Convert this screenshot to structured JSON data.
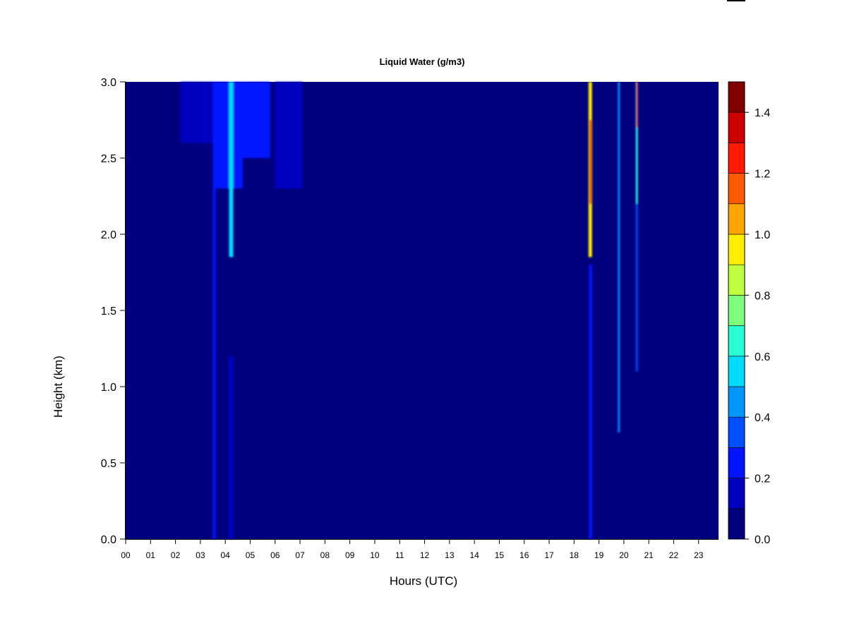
{
  "chart_data": {
    "type": "heatmap",
    "title": "Liquid Water (g/m3)",
    "xlabel": "Hours (UTC)",
    "ylabel": "Height (km)",
    "x_ticks": [
      "00",
      "01",
      "02",
      "03",
      "04",
      "05",
      "06",
      "07",
      "08",
      "09",
      "10",
      "11",
      "12",
      "13",
      "14",
      "15",
      "16",
      "17",
      "18",
      "19",
      "20",
      "21",
      "22",
      "23"
    ],
    "y_ticks": [
      "0.0",
      "0.5",
      "1.0",
      "1.5",
      "2.0",
      "2.5",
      "3.0"
    ],
    "xlim": [
      0,
      23.8
    ],
    "ylim": [
      0,
      3.0
    ],
    "colorbar": {
      "ticks": [
        "0.0",
        "0.2",
        "0.4",
        "0.6",
        "0.8",
        "1.0",
        "1.2",
        "1.4"
      ],
      "range": [
        0,
        1.5
      ],
      "levels": [
        0,
        0.1,
        0.2,
        0.3,
        0.4,
        0.5,
        0.6,
        0.7,
        0.8,
        0.9,
        1.0,
        1.1,
        1.2,
        1.3,
        1.4,
        1.5
      ],
      "colors": [
        "#00007f",
        "#0000bf",
        "#0014ff",
        "#0050ff",
        "#0096ff",
        "#00dcff",
        "#28ffd2",
        "#7cff7c",
        "#c0ff40",
        "#ffee00",
        "#ffa500",
        "#ff5a00",
        "#ff1a00",
        "#cc0000",
        "#800000"
      ]
    },
    "background_value": 0.0,
    "features": [
      {
        "x_from": 2.2,
        "x_to": 3.5,
        "y_from": 2.6,
        "y_to": 3.0,
        "value": 0.15
      },
      {
        "x_from": 3.5,
        "x_to": 4.7,
        "y_from": 2.3,
        "y_to": 3.0,
        "value": 0.2
      },
      {
        "x_from": 4.7,
        "x_to": 5.8,
        "y_from": 2.5,
        "y_to": 3.0,
        "value": 0.2
      },
      {
        "x_from": 6.0,
        "x_to": 7.1,
        "y_from": 2.3,
        "y_to": 3.0,
        "value": 0.15
      },
      {
        "x_from": 3.5,
        "x_to": 3.62,
        "y_from": 0.0,
        "y_to": 3.0,
        "value": 0.25
      },
      {
        "x_from": 4.15,
        "x_to": 4.32,
        "y_from": 1.85,
        "y_to": 3.0,
        "value": 0.5
      },
      {
        "x_from": 4.12,
        "x_to": 4.32,
        "y_from": 0.0,
        "y_to": 1.2,
        "value": 0.15
      },
      {
        "x_from": 18.58,
        "x_to": 18.72,
        "y_from": 1.85,
        "y_to": 3.0,
        "value": 0.9
      },
      {
        "x_from": 18.62,
        "x_to": 18.7,
        "y_from": 2.2,
        "y_to": 2.75,
        "value": 1.25
      },
      {
        "x_from": 18.6,
        "x_to": 18.72,
        "y_from": 0.0,
        "y_to": 1.8,
        "value": 0.2
      },
      {
        "x_from": 19.76,
        "x_to": 19.84,
        "y_from": 0.7,
        "y_to": 3.0,
        "value": 0.4
      },
      {
        "x_from": 20.48,
        "x_to": 20.56,
        "y_from": 1.1,
        "y_to": 3.0,
        "value": 0.3
      },
      {
        "x_from": 20.48,
        "x_to": 20.56,
        "y_from": 2.2,
        "y_to": 3.0,
        "value": 0.6
      },
      {
        "x_from": 20.5,
        "x_to": 20.56,
        "y_from": 2.7,
        "y_to": 3.0,
        "value": 1.2
      }
    ]
  }
}
